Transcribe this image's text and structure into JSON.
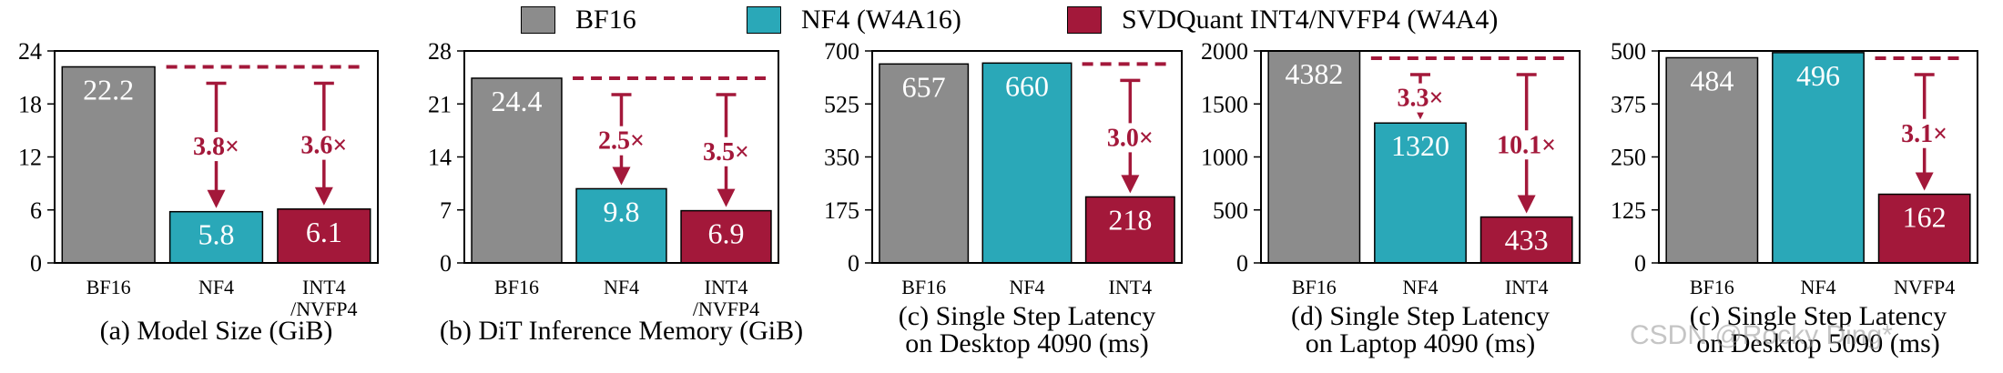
{
  "legend": [
    {
      "label": "BF16",
      "color": "#8c8c8c"
    },
    {
      "label": "NF4 (W4A16)",
      "color": "#2aa8b8"
    },
    {
      "label": "SVDQuant INT4/NVFP4 (W4A4)",
      "color": "#a3183a"
    }
  ],
  "colors": {
    "bf16": "#8c8c8c",
    "nf4": "#2aa8b8",
    "svdquant": "#a3183a",
    "arrow": "#a3183a"
  },
  "chart_data": [
    {
      "type": "bar",
      "categories": [
        "BF16",
        "NF4",
        "INT4\n/NVFP4"
      ],
      "values": [
        22.2,
        5.8,
        6.1
      ],
      "value_labels": [
        "22.2",
        "5.8",
        "6.1"
      ],
      "xlabel": "(a) Model Size (GiB)",
      "ylim": [
        0,
        24
      ],
      "yticks": [
        0,
        6,
        12,
        18,
        24
      ],
      "ytick_labels": [
        "0",
        "6",
        "12",
        "18",
        "24"
      ],
      "y_axis_side": "left",
      "annotations": [
        {
          "target": 1,
          "text": "3.8×"
        },
        {
          "target": 2,
          "text": "3.6×"
        }
      ]
    },
    {
      "type": "bar",
      "categories": [
        "BF16",
        "NF4",
        "INT4\n/NVFP4"
      ],
      "values": [
        24.4,
        9.8,
        6.9
      ],
      "value_labels": [
        "24.4",
        "9.8",
        "6.9"
      ],
      "xlabel": "(b) DiT Inference Memory (GiB)",
      "ylim": [
        0,
        28
      ],
      "yticks": [
        0,
        7,
        14,
        21,
        28
      ],
      "ytick_labels": [
        "0",
        "7",
        "14",
        "21",
        "28"
      ],
      "y_axis_side": "left",
      "annotations": [
        {
          "target": 1,
          "text": "2.5×"
        },
        {
          "target": 2,
          "text": "3.5×"
        }
      ]
    },
    {
      "type": "bar",
      "categories": [
        "BF16",
        "NF4",
        "INT4"
      ],
      "values": [
        657,
        660,
        218
      ],
      "value_labels": [
        "657",
        "660",
        "218"
      ],
      "xlabel": "(c) Single Step Latency\non Desktop 4090 (ms)",
      "ylim": [
        0,
        700
      ],
      "yticks": [
        0,
        175,
        350,
        525,
        700
      ],
      "ytick_labels": [
        "0",
        "175",
        "350",
        "525",
        "700"
      ],
      "y_axis_side": "left",
      "annotations": [
        {
          "target": 2,
          "text": "3.0×"
        }
      ]
    },
    {
      "type": "bar",
      "categories": [
        "BF16",
        "NF4",
        "INT4"
      ],
      "values": [
        4382,
        1320,
        433
      ],
      "value_labels": [
        "4382",
        "1320",
        "433"
      ],
      "xlabel": "(d) Single Step Latency\non Laptop 4090 (ms)",
      "ylim": [
        0,
        2000
      ],
      "yticks": [
        0,
        500,
        1000,
        1500,
        2000
      ],
      "ytick_labels": [
        "0",
        "500",
        "1000",
        "1500",
        "2000"
      ],
      "y_axis_side": "left",
      "annotations": [
        {
          "target": 1,
          "text": "3.3×"
        },
        {
          "target": 2,
          "text": "10.1×"
        }
      ]
    },
    {
      "type": "bar",
      "categories": [
        "BF16",
        "NF4",
        "NVFP4"
      ],
      "values": [
        484,
        496,
        162
      ],
      "value_labels": [
        "484",
        "496",
        "162"
      ],
      "xlabel": "(c) Single Step Latency\non Desktop 5090 (ms)",
      "ylim": [
        0,
        500
      ],
      "yticks": [
        0,
        125,
        250,
        375,
        500
      ],
      "ytick_labels": [
        "0",
        "125",
        "250",
        "375",
        "500"
      ],
      "y_axis_side": "left",
      "annotations": [
        {
          "target": 2,
          "text": "3.1×"
        }
      ]
    }
  ],
  "watermark": "CSDN @Rocky Ding*"
}
